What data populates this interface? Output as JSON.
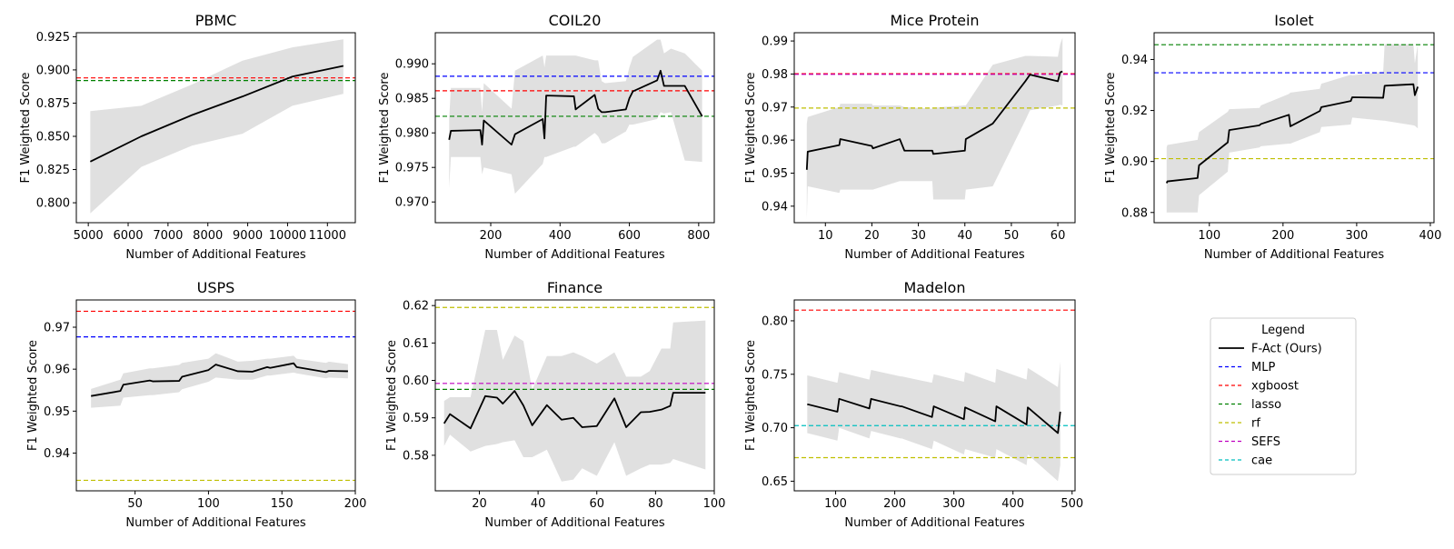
{
  "figure": {
    "legend": {
      "title": "Legend",
      "entries": [
        {
          "label": "F-Act (Ours)",
          "color": "#000000",
          "style": "solid"
        },
        {
          "label": "MLP",
          "color": "#0000ff",
          "style": "dashed"
        },
        {
          "label": "xgboost",
          "color": "#ff0000",
          "style": "dashed"
        },
        {
          "label": "lasso",
          "color": "#008000",
          "style": "dashed"
        },
        {
          "label": "rf",
          "color": "#bfbf00",
          "style": "dashed"
        },
        {
          "label": "SEFS",
          "color": "#bf00bf",
          "style": "dashed"
        },
        {
          "label": "cae",
          "color": "#00bfbf",
          "style": "dashed"
        }
      ]
    },
    "band_color": "#e0e0e0"
  },
  "chart_data": [
    {
      "type": "line",
      "title": "PBMC",
      "xlabel": "Number of Additional Features",
      "ylabel": "F1 Weighted Score",
      "xlim": [
        4700,
        11700
      ],
      "ylim": [
        0.785,
        0.928
      ],
      "xticks": [
        5000,
        6000,
        7000,
        8000,
        9000,
        10000,
        11000
      ],
      "yticks": [
        0.8,
        0.825,
        0.85,
        0.875,
        0.9,
        0.925
      ],
      "ytick_labels": [
        "0.800",
        "0.825",
        "0.850",
        "0.875",
        "0.900",
        "0.925"
      ],
      "x": [
        5050,
        6330,
        7600,
        8870,
        10120,
        11400
      ],
      "y": [
        0.831,
        0.85,
        0.866,
        0.88,
        0.895,
        0.903
      ],
      "lower": [
        0.792,
        0.827,
        0.843,
        0.852,
        0.873,
        0.882
      ],
      "upper": [
        0.869,
        0.873,
        0.889,
        0.907,
        0.917,
        0.923
      ],
      "baselines": [
        {
          "name": "xgboost",
          "value": 0.894
        },
        {
          "name": "lasso",
          "value": 0.892
        }
      ]
    },
    {
      "type": "line",
      "title": "COIL20",
      "xlabel": "Number of Additional Features",
      "ylabel": "F1 Weighted Score",
      "xlim": [
        40,
        845
      ],
      "ylim": [
        0.967,
        0.9945
      ],
      "xticks": [
        200,
        400,
        600,
        800
      ],
      "yticks": [
        0.97,
        0.975,
        0.98,
        0.985,
        0.99
      ],
      "ytick_labels": [
        "0.970",
        "0.975",
        "0.980",
        "0.985",
        "0.990"
      ],
      "x": [
        80,
        85,
        170,
        175,
        180,
        260,
        270,
        350,
        355,
        360,
        440,
        445,
        500,
        510,
        520,
        530,
        590,
        600,
        610,
        680,
        690,
        700,
        720,
        760,
        810
      ],
      "y": [
        0.979,
        0.9803,
        0.9804,
        0.9783,
        0.9818,
        0.9783,
        0.9798,
        0.982,
        0.9792,
        0.9854,
        0.9853,
        0.9834,
        0.9855,
        0.9835,
        0.983,
        0.983,
        0.9834,
        0.985,
        0.986,
        0.9876,
        0.989,
        0.9868,
        0.9868,
        0.9868,
        0.9824
      ],
      "lower": [
        0.972,
        0.9765,
        0.9765,
        0.974,
        0.975,
        0.974,
        0.9712,
        0.9755,
        0.9765,
        0.9765,
        0.978,
        0.978,
        0.98,
        0.9795,
        0.9785,
        0.9785,
        0.9802,
        0.9812,
        0.9812,
        0.982,
        0.983,
        0.9828,
        0.983,
        0.976,
        0.9758
      ],
      "upper": [
        0.982,
        0.9865,
        0.9865,
        0.983,
        0.9872,
        0.9835,
        0.989,
        0.9912,
        0.9895,
        0.9912,
        0.9912,
        0.9912,
        0.9905,
        0.9905,
        0.9875,
        0.9872,
        0.9875,
        0.9895,
        0.991,
        0.9935,
        0.9935,
        0.9915,
        0.9922,
        0.9915,
        0.989
      ],
      "baselines": [
        {
          "name": "MLP",
          "value": 0.9882
        },
        {
          "name": "xgboost",
          "value": 0.9861
        },
        {
          "name": "lasso",
          "value": 0.9824
        }
      ]
    },
    {
      "type": "line",
      "title": "Mice Protein",
      "xlabel": "Number of Additional Features",
      "ylabel": "F1 Weighted Score",
      "xlim": [
        3.3,
        63.7
      ],
      "ylim": [
        0.935,
        0.9925
      ],
      "xticks": [
        10,
        20,
        30,
        40,
        50,
        60
      ],
      "yticks": [
        0.94,
        0.95,
        0.96,
        0.97,
        0.98,
        0.99
      ],
      "ytick_labels": [
        "0.94",
        "0.95",
        "0.96",
        "0.97",
        "0.98",
        "0.99"
      ],
      "x": [
        6,
        6.2,
        13,
        13.2,
        20,
        20.2,
        26,
        27,
        33,
        33.2,
        40,
        40.2,
        46,
        53,
        54,
        60,
        60.5,
        61
      ],
      "y": [
        0.951,
        0.9565,
        0.9585,
        0.9603,
        0.9582,
        0.9575,
        0.9603,
        0.9568,
        0.9568,
        0.9558,
        0.9568,
        0.9603,
        0.965,
        0.9778,
        0.9798,
        0.9778,
        0.9805,
        0.9808
      ],
      "lower": [
        0.936,
        0.946,
        0.944,
        0.945,
        0.945,
        0.945,
        0.9476,
        0.9476,
        0.9476,
        0.942,
        0.942,
        0.945,
        0.946,
        0.966,
        0.969,
        0.9705,
        0.9707,
        0.9705
      ],
      "upper": [
        0.965,
        0.967,
        0.97,
        0.971,
        0.971,
        0.9705,
        0.9705,
        0.97,
        0.9695,
        0.9698,
        0.9705,
        0.9705,
        0.9828,
        0.9855,
        0.9855,
        0.9852,
        0.989,
        0.991
      ],
      "baselines": [
        {
          "name": "xgboost",
          "value": 0.9801
        },
        {
          "name": "SEFS",
          "value": 0.9799
        },
        {
          "name": "rf",
          "value": 0.9697
        }
      ]
    },
    {
      "type": "line",
      "title": "Isolet",
      "xlabel": "Number of Additional Features",
      "ylabel": "F1 Weighted Score",
      "xlim": [
        25,
        405
      ],
      "ylim": [
        0.876,
        0.9505
      ],
      "xticks": [
        100,
        200,
        300,
        400
      ],
      "yticks": [
        0.88,
        0.9,
        0.92,
        0.94
      ],
      "ytick_labels": [
        "0.88",
        "0.90",
        "0.92",
        "0.94"
      ],
      "x": [
        42,
        43,
        84,
        86,
        125,
        127,
        168,
        170,
        208,
        210,
        250,
        252,
        292,
        294,
        336,
        338,
        377,
        379,
        383
      ],
      "y": [
        0.8915,
        0.8922,
        0.8935,
        0.8985,
        0.9075,
        0.9123,
        0.9142,
        0.9147,
        0.9183,
        0.9138,
        0.9198,
        0.9213,
        0.9237,
        0.9252,
        0.925,
        0.9297,
        0.9303,
        0.926,
        0.9293
      ],
      "lower": [
        0.88,
        0.88,
        0.88,
        0.8868,
        0.896,
        0.9035,
        0.9055,
        0.906,
        0.907,
        0.907,
        0.9115,
        0.9135,
        0.9145,
        0.9172,
        0.916,
        0.916,
        0.9142,
        0.914,
        0.913
      ],
      "upper": [
        0.9055,
        0.9065,
        0.9085,
        0.9115,
        0.9195,
        0.9205,
        0.921,
        0.922,
        0.9265,
        0.927,
        0.9285,
        0.9305,
        0.934,
        0.9338,
        0.9352,
        0.946,
        0.946,
        0.9385,
        0.946
      ],
      "baselines": [
        {
          "name": "lasso",
          "value": 0.9458
        },
        {
          "name": "MLP",
          "value": 0.9348
        },
        {
          "name": "rf",
          "value": 0.9011
        }
      ]
    },
    {
      "type": "line",
      "title": "USPS",
      "xlabel": "Number of Additional Features",
      "ylabel": "F1 Weighted Score",
      "xlim": [
        10,
        200
      ],
      "ylim": [
        0.931,
        0.9765
      ],
      "xticks": [
        50,
        100,
        150,
        200
      ],
      "yticks": [
        0.94,
        0.95,
        0.96,
        0.97
      ],
      "ytick_labels": [
        "0.94",
        "0.95",
        "0.96",
        "0.97"
      ],
      "x": [
        20,
        40,
        42,
        60,
        62,
        80,
        82,
        100,
        105,
        120,
        130,
        140,
        142,
        158,
        160,
        180,
        182,
        195
      ],
      "y": [
        0.9536,
        0.9548,
        0.9563,
        0.9573,
        0.9571,
        0.9572,
        0.9582,
        0.9598,
        0.9611,
        0.9595,
        0.9594,
        0.9605,
        0.9603,
        0.9614,
        0.9605,
        0.9593,
        0.9596,
        0.9595
      ],
      "lower": [
        0.9508,
        0.9513,
        0.9532,
        0.9538,
        0.9538,
        0.9545,
        0.9552,
        0.957,
        0.958,
        0.9575,
        0.9575,
        0.9585,
        0.9585,
        0.9592,
        0.959,
        0.9578,
        0.958,
        0.9578
      ],
      "upper": [
        0.9553,
        0.9575,
        0.959,
        0.9602,
        0.9602,
        0.961,
        0.9615,
        0.9625,
        0.9638,
        0.9618,
        0.962,
        0.9625,
        0.9625,
        0.9632,
        0.9625,
        0.9615,
        0.9618,
        0.9612
      ],
      "baselines": [
        {
          "name": "xgboost",
          "value": 0.9738
        },
        {
          "name": "MLP",
          "value": 0.9677
        },
        {
          "name": "rf",
          "value": 0.9335
        }
      ]
    },
    {
      "type": "line",
      "title": "Finance",
      "xlabel": "Number of Additional Features",
      "ylabel": "F1 Weighted Score",
      "xlim": [
        5,
        100
      ],
      "ylim": [
        0.5705,
        0.6215
      ],
      "xticks": [
        20,
        40,
        60,
        80,
        100
      ],
      "yticks": [
        0.58,
        0.59,
        0.6,
        0.61,
        0.62
      ],
      "ytick_labels": [
        "0.58",
        "0.59",
        "0.60",
        "0.61",
        "0.62"
      ],
      "x": [
        8,
        10,
        17,
        22,
        26,
        28,
        32,
        35,
        38,
        43,
        48,
        52,
        55,
        60,
        63,
        66,
        70,
        75,
        78,
        82,
        85,
        86,
        97
      ],
      "y": [
        0.5885,
        0.591,
        0.5872,
        0.5958,
        0.5954,
        0.5938,
        0.5972,
        0.5933,
        0.588,
        0.5934,
        0.5895,
        0.59,
        0.5875,
        0.5878,
        0.5915,
        0.5952,
        0.5875,
        0.5915,
        0.5916,
        0.5922,
        0.5932,
        0.5967,
        0.5967
      ],
      "lower": [
        0.5825,
        0.5855,
        0.581,
        0.5825,
        0.583,
        0.5835,
        0.584,
        0.5795,
        0.5795,
        0.5815,
        0.573,
        0.5735,
        0.5765,
        0.5745,
        0.579,
        0.5835,
        0.5745,
        0.5765,
        0.5775,
        0.5775,
        0.578,
        0.579,
        0.5762
      ],
      "upper": [
        0.5945,
        0.5955,
        0.5955,
        0.6135,
        0.6135,
        0.6055,
        0.612,
        0.6105,
        0.5975,
        0.6065,
        0.6065,
        0.6075,
        0.6065,
        0.6045,
        0.606,
        0.6075,
        0.601,
        0.601,
        0.6025,
        0.6085,
        0.6085,
        0.6155,
        0.616
      ],
      "baselines": [
        {
          "name": "rf",
          "value": 0.6195
        },
        {
          "name": "SEFS",
          "value": 0.5992
        },
        {
          "name": "lasso",
          "value": 0.5976
        }
      ]
    },
    {
      "type": "line",
      "title": "Madelon",
      "xlabel": "Number of Additional Features",
      "ylabel": "F1 Weighted Score",
      "xlim": [
        30,
        505
      ],
      "ylim": [
        0.641,
        0.8195
      ],
      "xticks": [
        100,
        200,
        300,
        400,
        500
      ],
      "yticks": [
        0.65,
        0.7,
        0.75,
        0.8
      ],
      "ytick_labels": [
        "0.65",
        "0.70",
        "0.75",
        "0.80"
      ],
      "x": [
        52,
        103,
        106,
        157,
        160,
        210,
        212,
        263,
        266,
        317,
        319,
        370,
        372,
        423,
        425,
        476,
        480
      ],
      "y": [
        0.722,
        0.715,
        0.727,
        0.718,
        0.727,
        0.72,
        0.72,
        0.71,
        0.72,
        0.708,
        0.719,
        0.706,
        0.72,
        0.703,
        0.719,
        0.695,
        0.715
      ],
      "lower": [
        0.695,
        0.688,
        0.7,
        0.69,
        0.697,
        0.69,
        0.69,
        0.68,
        0.688,
        0.675,
        0.68,
        0.672,
        0.68,
        0.665,
        0.675,
        0.65,
        0.665
      ],
      "upper": [
        0.749,
        0.742,
        0.752,
        0.745,
        0.754,
        0.748,
        0.748,
        0.742,
        0.75,
        0.743,
        0.752,
        0.742,
        0.755,
        0.745,
        0.756,
        0.738,
        0.762
      ],
      "baselines": [
        {
          "name": "xgboost",
          "value": 0.81
        },
        {
          "name": "cae",
          "value": 0.702
        },
        {
          "name": "rf",
          "value": 0.672
        }
      ]
    }
  ]
}
